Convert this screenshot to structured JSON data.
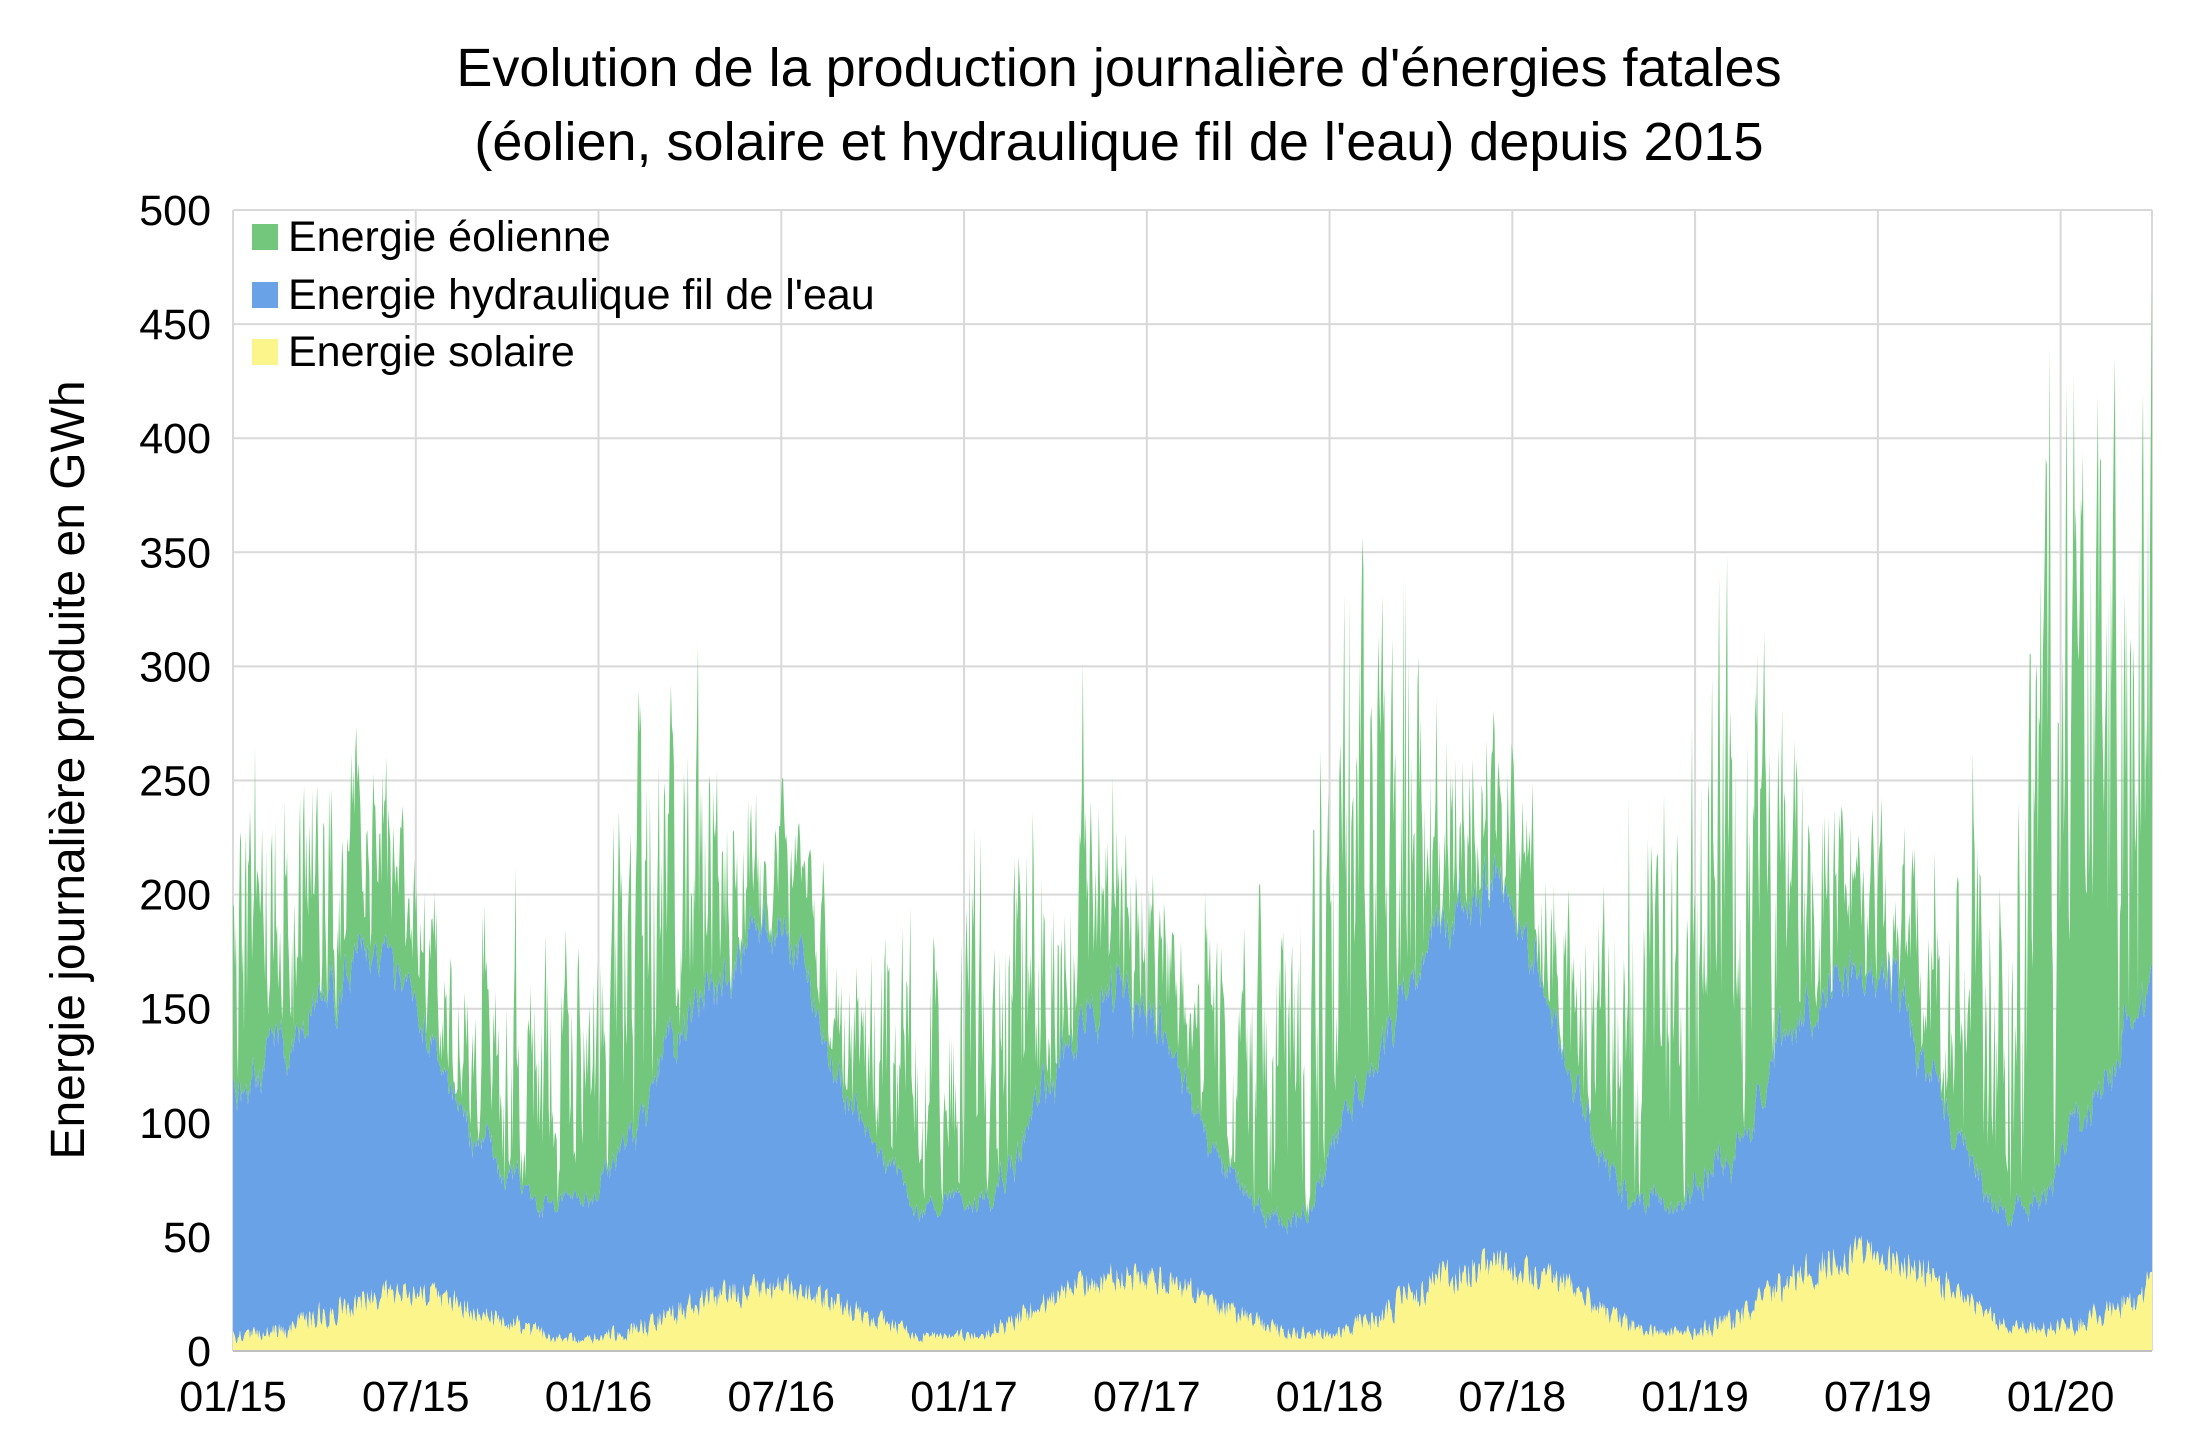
{
  "chart_data": {
    "type": "area",
    "stacked": true,
    "title": [
      "Evolution de la production journalière d'énergies fatales",
      "(éolien, solaire et hydraulique fil de l'eau) depuis 2015"
    ],
    "ylabel": "Energie journalière produite en GWh",
    "xlabel": "",
    "ylim": [
      0,
      500
    ],
    "yticks": [
      "0",
      "50",
      "100",
      "150",
      "200",
      "250",
      "300",
      "350",
      "400",
      "450",
      "500"
    ],
    "xlim_months": [
      0,
      63
    ],
    "xticks": [
      {
        "month": 0,
        "label": "01/15"
      },
      {
        "month": 6,
        "label": "07/15"
      },
      {
        "month": 12,
        "label": "01/16"
      },
      {
        "month": 18,
        "label": "07/16"
      },
      {
        "month": 24,
        "label": "01/17"
      },
      {
        "month": 30,
        "label": "07/17"
      },
      {
        "month": 36,
        "label": "01/18"
      },
      {
        "month": 42,
        "label": "07/18"
      },
      {
        "month": 48,
        "label": "01/19"
      },
      {
        "month": 54,
        "label": "07/19"
      },
      {
        "month": 60,
        "label": "01/20"
      }
    ],
    "grid": true,
    "legend_position": "top-left",
    "resolution": "daily (approximated from monthly levels and daily spread)",
    "series": [
      {
        "name": "Energie éolienne",
        "color": "#72c77d",
        "note": "stacked on top of hydraulique",
        "monthly_mean": [
          70,
          60,
          55,
          50,
          40,
          30,
          28,
          30,
          40,
          45,
          55,
          50,
          80,
          85,
          70,
          60,
          40,
          30,
          28,
          30,
          40,
          50,
          55,
          50,
          90,
          70,
          65,
          55,
          45,
          35,
          30,
          30,
          45,
          60,
          65,
          90,
          130,
          110,
          80,
          60,
          45,
          35,
          30,
          35,
          50,
          65,
          75,
          95,
          115,
          120,
          85,
          60,
          45,
          40,
          30,
          35,
          50,
          75,
          95,
          150,
          170,
          150,
          165,
          170
        ],
        "daily_amplitude": [
          80,
          70,
          65,
          60,
          50,
          40,
          35,
          35,
          45,
          55,
          65,
          60,
          90,
          95,
          80,
          70,
          50,
          40,
          35,
          35,
          45,
          60,
          65,
          60,
          100,
          85,
          75,
          65,
          55,
          45,
          40,
          40,
          55,
          70,
          80,
          100,
          140,
          120,
          95,
          70,
          55,
          45,
          40,
          45,
          60,
          80,
          90,
          105,
          130,
          130,
          100,
          75,
          55,
          50,
          40,
          45,
          60,
          85,
          105,
          150,
          170,
          160,
          170,
          170
        ]
      },
      {
        "name": "Energie hydraulique fil de l'eau",
        "color": "#6aa2e8",
        "monthly_mean": [
          110,
          120,
          135,
          145,
          155,
          140,
          110,
          85,
          70,
          62,
          58,
          60,
          75,
          95,
          125,
          140,
          150,
          160,
          150,
          110,
          85,
          68,
          58,
          55,
          60,
          70,
          90,
          110,
          120,
          125,
          110,
          80,
          60,
          50,
          45,
          55,
          90,
          110,
          125,
          150,
          160,
          170,
          140,
          105,
          75,
          60,
          55,
          55,
          65,
          80,
          100,
          110,
          120,
          130,
          125,
          90,
          70,
          55,
          50,
          60,
          90,
          100,
          130,
          130
        ],
        "daily_amplitude": [
          15,
          15,
          15,
          15,
          15,
          15,
          12,
          10,
          10,
          8,
          8,
          8,
          12,
          15,
          15,
          15,
          15,
          15,
          15,
          12,
          10,
          8,
          8,
          8,
          10,
          12,
          15,
          15,
          15,
          15,
          12,
          10,
          8,
          8,
          8,
          10,
          15,
          15,
          15,
          15,
          15,
          15,
          15,
          12,
          10,
          8,
          8,
          8,
          10,
          12,
          15,
          15,
          15,
          15,
          15,
          12,
          10,
          8,
          8,
          10,
          15,
          15,
          15,
          15
        ]
      },
      {
        "name": "Energie solaire",
        "color": "#fbf58c",
        "monthly_mean": [
          6,
          9,
          14,
          19,
          23,
          25,
          24,
          20,
          15,
          10,
          6,
          5,
          7,
          11,
          16,
          21,
          25,
          28,
          27,
          23,
          17,
          11,
          7,
          6,
          8,
          12,
          20,
          27,
          32,
          33,
          31,
          26,
          19,
          13,
          8,
          7,
          10,
          14,
          24,
          30,
          36,
          38,
          35,
          30,
          22,
          14,
          9,
          8,
          10,
          15,
          25,
          33,
          40,
          42,
          41,
          35,
          26,
          16,
          11,
          10,
          12,
          16,
          25,
          32
        ],
        "daily_amplitude": [
          5,
          6,
          8,
          9,
          9,
          8,
          8,
          8,
          7,
          6,
          4,
          3,
          5,
          7,
          8,
          9,
          9,
          8,
          8,
          8,
          7,
          6,
          4,
          3,
          5,
          7,
          9,
          10,
          10,
          9,
          9,
          9,
          8,
          6,
          5,
          4,
          6,
          8,
          10,
          11,
          11,
          10,
          10,
          9,
          8,
          7,
          5,
          4,
          6,
          8,
          11,
          12,
          12,
          11,
          11,
          10,
          9,
          7,
          5,
          5,
          7,
          9,
          11,
          13
        ]
      }
    ]
  }
}
